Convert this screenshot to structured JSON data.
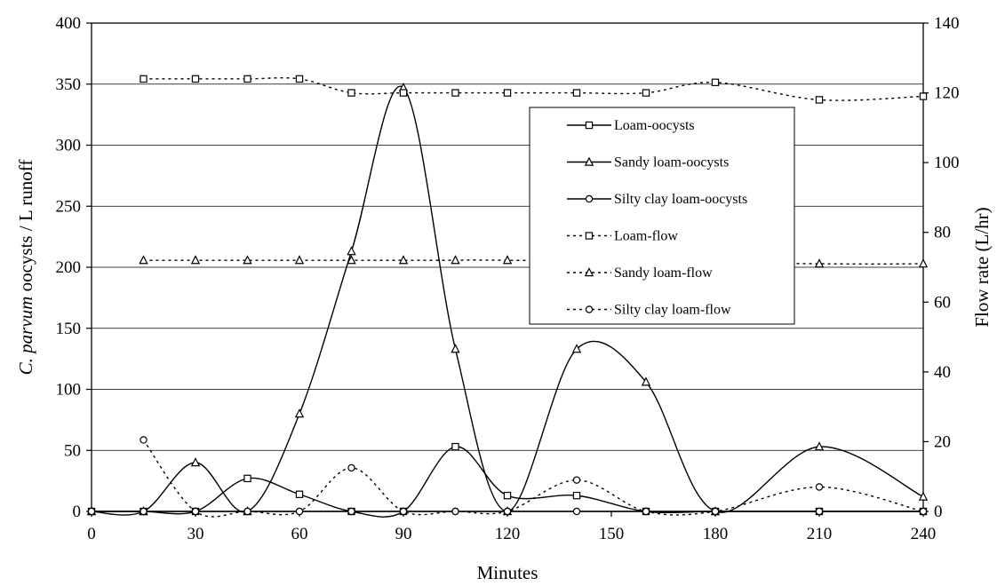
{
  "chart_data": {
    "type": "line",
    "title": "",
    "xlabel": "Minutes",
    "ylabel_italic": "C. parvum",
    "ylabel_rest": " oocysts / L runoff",
    "y2label": "Flow rate (L/hr)",
    "xlim": [
      0,
      240
    ],
    "ylim": [
      0,
      400
    ],
    "y2lim": [
      0,
      140
    ],
    "xticks": [
      "0",
      "30",
      "60",
      "90",
      "120",
      "150",
      "180",
      "210",
      "240"
    ],
    "yticks": [
      "0",
      "50",
      "100",
      "150",
      "200",
      "250",
      "300",
      "350",
      "400"
    ],
    "y2ticks": [
      "0",
      "20",
      "40",
      "60",
      "80",
      "100",
      "120",
      "140"
    ],
    "grid": "horizontal",
    "legend_position": "upper-right",
    "series": [
      {
        "name": "Loam-oocysts",
        "axis": "left",
        "marker": "square",
        "style": "solid",
        "x": [
          0,
          15,
          30,
          45,
          60,
          75,
          90,
          105,
          120,
          140,
          160,
          180,
          210,
          240
        ],
        "y": [
          0,
          0,
          0,
          27,
          14,
          0,
          0,
          53,
          13,
          13,
          0,
          0,
          0,
          0
        ]
      },
      {
        "name": "Sandy loam-oocysts",
        "axis": "left",
        "marker": "triangle",
        "style": "solid",
        "x": [
          0,
          15,
          30,
          45,
          60,
          75,
          90,
          105,
          120,
          140,
          160,
          180,
          210,
          240
        ],
        "y": [
          0,
          0,
          40,
          0,
          80,
          213,
          347,
          133,
          0,
          133,
          106,
          0,
          53,
          12
        ]
      },
      {
        "name": "Silty clay loam-oocysts",
        "axis": "left",
        "marker": "circle",
        "style": "solid",
        "x": [
          0,
          15,
          30,
          45,
          60,
          75,
          90,
          105,
          120,
          140,
          160,
          180,
          210,
          240
        ],
        "y": [
          0,
          0,
          0,
          0,
          0,
          0,
          0,
          0,
          0,
          0,
          0,
          0,
          0,
          0
        ]
      },
      {
        "name": "Loam-flow",
        "axis": "right",
        "marker": "square",
        "style": "dotted",
        "x": [
          15,
          30,
          45,
          60,
          75,
          90,
          105,
          120,
          140,
          160,
          180,
          210,
          240
        ],
        "y": [
          124,
          124,
          124,
          124,
          120,
          120,
          120,
          120,
          120,
          120,
          123,
          118,
          119
        ]
      },
      {
        "name": "Sandy loam-flow",
        "axis": "right",
        "marker": "triangle",
        "style": "dotted",
        "x": [
          15,
          30,
          45,
          60,
          75,
          90,
          105,
          120,
          210,
          240
        ],
        "y": [
          72,
          72,
          72,
          72,
          72,
          72,
          72,
          72,
          71,
          71
        ]
      },
      {
        "name": "Silty clay loam-flow",
        "axis": "right",
        "marker": "circle",
        "style": "dotted",
        "x": [
          15,
          30,
          45,
          60,
          75,
          90,
          105,
          120,
          140,
          160,
          180,
          210,
          240
        ],
        "y": [
          20.5,
          0,
          0,
          0,
          12.5,
          0,
          0,
          0,
          9,
          0,
          0,
          7,
          0
        ]
      }
    ]
  }
}
